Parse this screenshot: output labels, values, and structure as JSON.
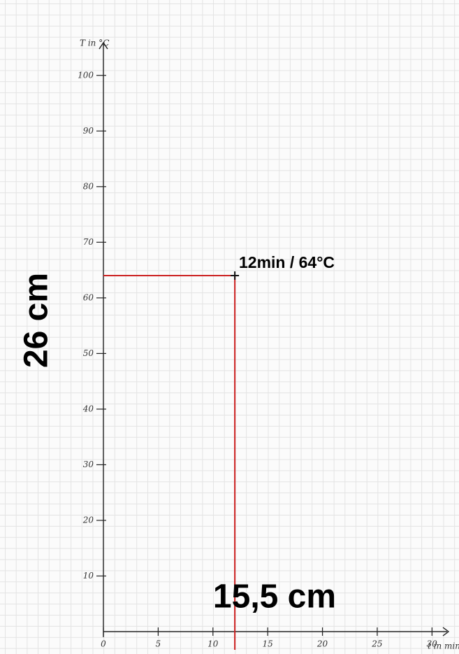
{
  "chart_data": {
    "type": "scatter",
    "x_label": "t in min",
    "y_label": "T in °C",
    "xlim": [
      0,
      31
    ],
    "ylim": [
      0,
      105
    ],
    "xticks": [
      0,
      5,
      10,
      15,
      20,
      25,
      30
    ],
    "yticks": [
      10,
      20,
      30,
      40,
      50,
      60,
      70,
      80,
      90,
      100
    ],
    "series": [
      {
        "color": "#111111",
        "x": [
          12
        ],
        "values": [
          64
        ]
      }
    ],
    "guide_color": "#cc2020",
    "annotations": [
      {
        "text": "12min / 64°C"
      },
      {
        "text": "26 cm"
      },
      {
        "text": "15,5 cm"
      }
    ]
  }
}
